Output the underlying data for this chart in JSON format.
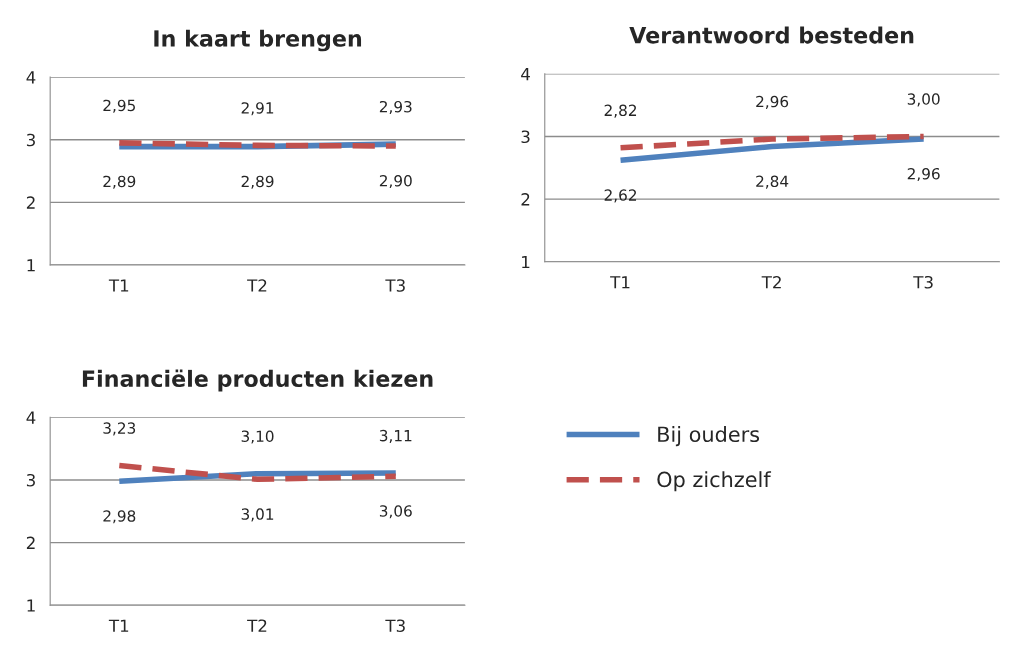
{
  "chart_data": [
    {
      "type": "line",
      "title": "In kaart brengen",
      "categories": [
        "T1",
        "T2",
        "T3"
      ],
      "ylim": [
        1,
        4
      ],
      "yticks": [
        1,
        2,
        3,
        4
      ],
      "grid": "y",
      "series": [
        {
          "color": "#4f81bd",
          "values": [
            2.89,
            2.89,
            2.93
          ],
          "value_labels": [
            "2,89",
            "2,89",
            "2,93"
          ],
          "line_style": "solid"
        },
        {
          "color": "#c0504d",
          "values": [
            2.95,
            2.91,
            2.9
          ],
          "value_labels": [
            "2,95",
            "2,91",
            "2,90"
          ],
          "line_style": "dashed"
        }
      ]
    },
    {
      "type": "line",
      "title": "Verantwoord besteden",
      "categories": [
        "T1",
        "T2",
        "T3"
      ],
      "ylim": [
        1,
        4
      ],
      "yticks": [
        1,
        2,
        3,
        4
      ],
      "grid": "y",
      "series": [
        {
          "color": "#4f81bd",
          "values": [
            2.62,
            2.84,
            2.96
          ],
          "value_labels": [
            "2,62",
            "2,84",
            "2,96"
          ],
          "line_style": "solid"
        },
        {
          "color": "#c0504d",
          "values": [
            2.82,
            2.96,
            3.0
          ],
          "value_labels": [
            "2,82",
            "2,96",
            "3,00"
          ],
          "line_style": "dashed"
        }
      ]
    },
    {
      "type": "line",
      "title": "Financiële producten kiezen",
      "categories": [
        "T1",
        "T2",
        "T3"
      ],
      "ylim": [
        1,
        4
      ],
      "yticks": [
        1,
        2,
        3,
        4
      ],
      "grid": "y",
      "legend": "right",
      "series": [
        {
          "name": "Bij ouders",
          "color": "#4f81bd",
          "values": [
            2.98,
            3.1,
            3.11
          ],
          "value_labels": [
            "2,98",
            "3,10",
            "3,11"
          ],
          "line_style": "solid"
        },
        {
          "name": "Op zichzelf",
          "color": "#c0504d",
          "values": [
            3.23,
            3.01,
            3.06
          ],
          "value_labels": [
            "3,23",
            "3,01",
            "3,06"
          ],
          "line_style": "dashed"
        }
      ]
    }
  ]
}
